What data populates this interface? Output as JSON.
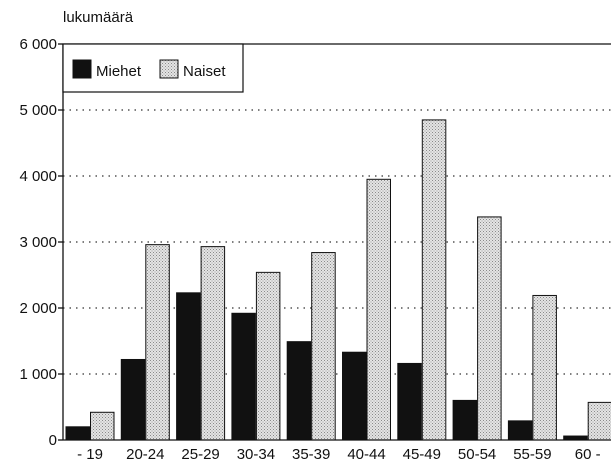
{
  "chart_data": {
    "type": "bar",
    "ylabel": "lukumäärä",
    "categories": [
      "- 19",
      "20-24",
      "25-29",
      "30-34",
      "35-39",
      "40-44",
      "45-49",
      "50-54",
      "55-59",
      "60 -"
    ],
    "series": [
      {
        "name": "Miehet",
        "color": "#111111",
        "values": [
          200,
          1220,
          2230,
          1920,
          1490,
          1330,
          1160,
          600,
          290,
          60
        ]
      },
      {
        "name": "Naiset",
        "color": "#d4d4d4",
        "values": [
          420,
          2960,
          2930,
          2540,
          2840,
          3950,
          4850,
          3380,
          2190,
          570
        ]
      }
    ],
    "ylim": [
      0,
      6000
    ],
    "yticks": [
      0,
      1000,
      2000,
      3000,
      4000,
      5000,
      6000
    ],
    "ytick_labels": [
      "0",
      "1 000",
      "2 000",
      "3 000",
      "4 000",
      "5 000",
      "6 000"
    ],
    "grid": "dotted horizontal",
    "legend_position": "top-left"
  }
}
